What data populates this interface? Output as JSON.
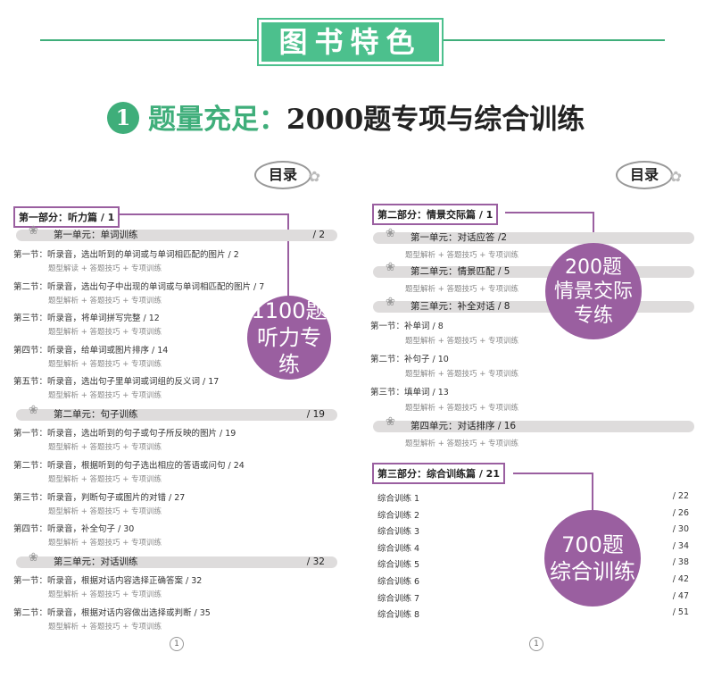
{
  "header": {
    "banner": "图书特色",
    "number": "1",
    "highlight": "题量充足：",
    "title": "2000题专项与综合训练",
    "colors": {
      "green": "#4cc08d",
      "purple": "#9a5fa0"
    }
  },
  "toc_label": "目录",
  "left": {
    "part": "第一部分：听力篇 / 1",
    "badge": [
      "1100题",
      "听力专练"
    ],
    "items": [
      {
        "type": "unit",
        "label": "第一单元：单词训练",
        "page": "/ 2"
      },
      {
        "type": "row",
        "label": "第一节：听录音，选出听到的单词或与单词相匹配的图片  /  2"
      },
      {
        "type": "sub",
        "label": "题型解读 + 答题技巧 + 专项训练"
      },
      {
        "type": "row",
        "label": "第二节：听录音，选出句子中出现的单词或与单词相匹配的图片  /  7"
      },
      {
        "type": "sub",
        "label": "题型解析 + 答题技巧 + 专项训练"
      },
      {
        "type": "row",
        "label": "第三节：听录音，将单词拼写完整  /  12"
      },
      {
        "type": "sub",
        "label": "题型解析 + 答题技巧 + 专项训练"
      },
      {
        "type": "row",
        "label": "第四节：听录音，给单词或图片排序  /  14"
      },
      {
        "type": "sub",
        "label": "题型解析 + 答题技巧 + 专项训练"
      },
      {
        "type": "row",
        "label": "第五节：听录音，选出句子里单词或词组的反义词  /  17"
      },
      {
        "type": "sub",
        "label": "题型解析 + 答题技巧 + 专项训练"
      },
      {
        "type": "unit",
        "label": "第二单元：句子训练",
        "page": "/ 19"
      },
      {
        "type": "row",
        "label": "第一节：听录音，选出听到的句子或句子所反映的图片  /  19"
      },
      {
        "type": "sub",
        "label": "题型解析 + 答题技巧 + 专项训练"
      },
      {
        "type": "row",
        "label": "第二节：听录音，根据听到的句子选出相应的答语或问句  /  24"
      },
      {
        "type": "sub",
        "label": "题型解析 + 答题技巧 + 专项训练"
      },
      {
        "type": "row",
        "label": "第三节：听录音，判断句子或图片的对错  /  27"
      },
      {
        "type": "sub",
        "label": "题型解析 + 答题技巧 + 专项训练"
      },
      {
        "type": "row",
        "label": "第四节：听录音，补全句子  /  30"
      },
      {
        "type": "sub",
        "label": "题型解析 + 答题技巧 + 专项训练"
      },
      {
        "type": "unit",
        "label": "第三单元：对话训练",
        "page": "/ 32"
      },
      {
        "type": "row",
        "label": "第一节：听录音，根据对话内容选择正确答案  /  32"
      },
      {
        "type": "sub",
        "label": "题型解析 + 答题技巧 + 专项训练"
      },
      {
        "type": "row",
        "label": "第二节：听录音，根据对话内容做出选择或判断  /  35"
      },
      {
        "type": "sub",
        "label": "题型解析 + 答题技巧 + 专项训练"
      }
    ],
    "page_number": "1"
  },
  "right": {
    "part": "第二部分：情景交际篇  / 1",
    "badge": [
      "200题",
      "情景交际",
      "专练"
    ],
    "items": [
      {
        "type": "unit",
        "label": "第一单元：对话应答 /2"
      },
      {
        "type": "sub",
        "label": "题型解析 + 答题技巧 + 专项训练"
      },
      {
        "type": "unit",
        "label": "第二单元：情景匹配 / 5"
      },
      {
        "type": "sub",
        "label": "题型解析 + 答题技巧 + 专项训练"
      },
      {
        "type": "unit",
        "label": "第三单元：补全对话 / 8"
      },
      {
        "type": "row",
        "label": "第一节：补单词  /  8"
      },
      {
        "type": "sub",
        "label": "题型解析 + 答题技巧 + 专项训练"
      },
      {
        "type": "row",
        "label": "第二节：补句子  /  10"
      },
      {
        "type": "sub",
        "label": "题型解析 + 答题技巧 + 专项训练"
      },
      {
        "type": "row",
        "label": "第三节：填单词  /  13"
      },
      {
        "type": "sub",
        "label": "题型解析 + 答题技巧 + 专项训练"
      },
      {
        "type": "unit",
        "label": "第四单元：对话排序 / 16"
      },
      {
        "type": "sub",
        "label": "题型解析 + 答题技巧 + 专项训练"
      }
    ],
    "part3": "第三部分：综合训练篇 / 21",
    "badge3": [
      "700题",
      "综合训练"
    ],
    "practice": [
      {
        "label": "综合训练 1",
        "page": "/ 22"
      },
      {
        "label": "综合训练 2",
        "page": "/ 26"
      },
      {
        "label": "综合训练 3",
        "page": "/ 30"
      },
      {
        "label": "综合训练 4",
        "page": "/ 34"
      },
      {
        "label": "综合训练 5",
        "page": "/ 38"
      },
      {
        "label": "综合训练 6",
        "page": "/ 42"
      },
      {
        "label": "综合训练 7",
        "page": "/ 47"
      },
      {
        "label": "综合训练 8",
        "page": "/ 51"
      }
    ],
    "page_number": "1"
  }
}
